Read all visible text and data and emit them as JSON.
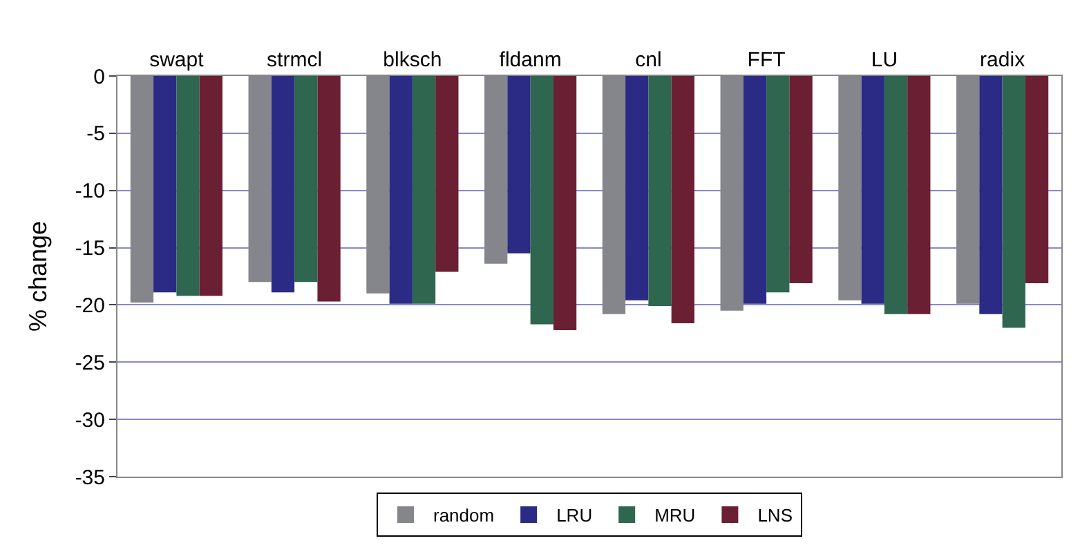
{
  "chart_data": {
    "type": "bar",
    "categories": [
      "swapt",
      "strmcl",
      "blksch",
      "fldanm",
      "cnl",
      "FFT",
      "LU",
      "radix"
    ],
    "ylabel": "% change",
    "series": [
      {
        "name": "random",
        "color": "#85858c",
        "values": [
          -19.8,
          -18.0,
          -19.0,
          -16.4,
          -20.8,
          -20.5,
          -19.6,
          -19.9
        ]
      },
      {
        "name": "LRU",
        "color": "#2b2b85",
        "values": [
          -18.9,
          -18.9,
          -19.9,
          -15.5,
          -19.6,
          -19.9,
          -19.9,
          -20.8
        ]
      },
      {
        "name": "MRU",
        "color": "#2e6650",
        "values": [
          -19.2,
          -18.0,
          -19.9,
          -21.7,
          -20.1,
          -18.9,
          -20.8,
          -22.0
        ]
      },
      {
        "name": "LNS",
        "color": "#6b1f33",
        "values": [
          -19.2,
          -19.7,
          -17.1,
          -22.2,
          -21.6,
          -18.1,
          -20.8,
          -18.1
        ]
      }
    ],
    "ylim": [
      -35,
      0
    ],
    "yticks": [
      -35,
      -30,
      -25,
      -20,
      -15,
      -10,
      -5,
      0
    ],
    "grid": "y",
    "legend": "bottom"
  }
}
